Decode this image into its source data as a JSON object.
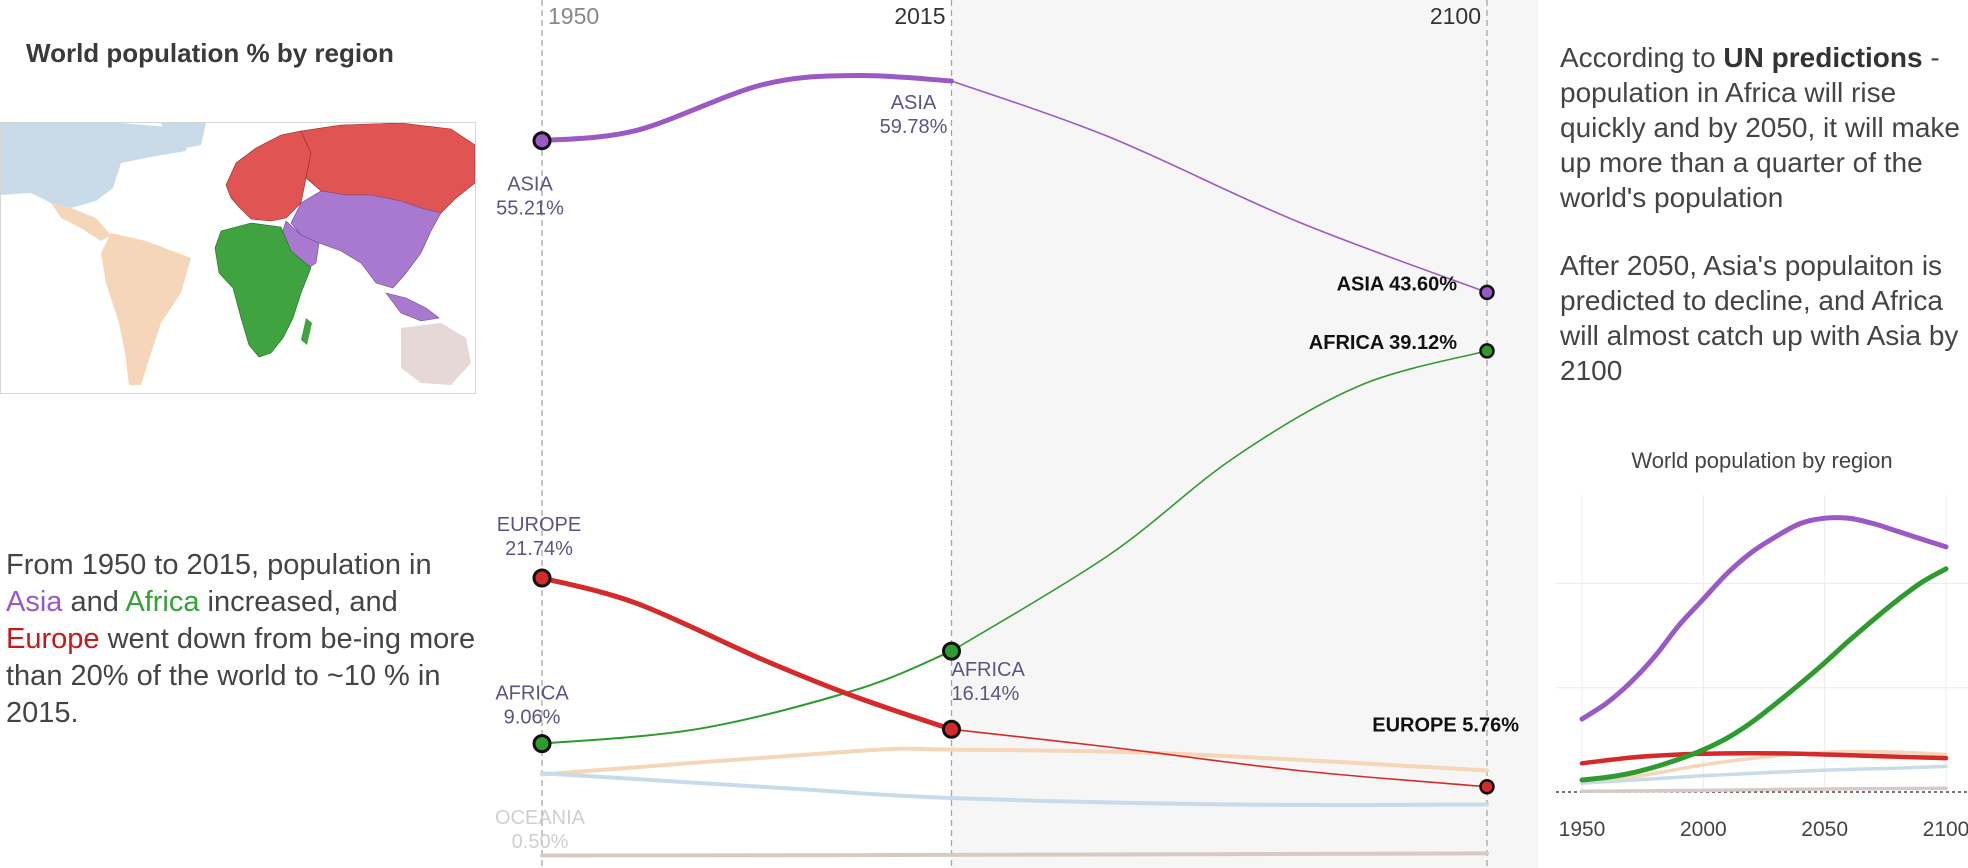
{
  "left": {
    "title": "World population % by region",
    "note": {
      "p1": "From 1950 to 2015, population in ",
      "asia": "Asia",
      "p2": " and ",
      "africa": "Africa",
      "p3": " increased, and ",
      "europe": "Europe",
      "p4": " went down from be-ing more than 20% of the world to ~10 % in 2015."
    }
  },
  "right": {
    "note1": {
      "lead": "According to ",
      "bold": "UN predictions",
      "rest": " - population in Africa will rise quickly and by 2050, it will make up more than a quarter of the world's population"
    },
    "note2": "After 2050, Asia's populaiton is predicted to decline, and Africa will almost catch up with Asia by 2100"
  },
  "colors": {
    "asia": "#9b59c6",
    "africa": "#2e9b2e",
    "europe": "#d42a2a",
    "americas": "#f5d6b8",
    "north_america": "#c9dbe9",
    "oceania": "#d9c9c6",
    "projection_bg": "#f6f6f6"
  },
  "chart_data": [
    {
      "type": "line",
      "x_markers": [
        "1950",
        "2015",
        "2100"
      ],
      "series": [
        {
          "name": "ASIA",
          "x": [
            1950,
            1965,
            1985,
            2000,
            2015,
            2040,
            2070,
            2100
          ],
          "values": [
            55.21,
            56.0,
            59.5,
            60.2,
            59.78,
            55.5,
            49.0,
            43.6
          ]
        },
        {
          "name": "AFRICA",
          "x": [
            1950,
            1975,
            2000,
            2015,
            2040,
            2060,
            2080,
            2100
          ],
          "values": [
            9.06,
            10.2,
            13.2,
            16.14,
            23.5,
            31.0,
            36.5,
            39.12
          ]
        },
        {
          "name": "EUROPE",
          "x": [
            1950,
            1965,
            1985,
            2000,
            2015,
            2040,
            2070,
            2100
          ],
          "values": [
            21.74,
            19.8,
            15.5,
            12.6,
            10.16,
            8.8,
            7.0,
            5.76
          ]
        },
        {
          "name": "",
          "x": [
            1950,
            2000,
            2015,
            2050,
            2100
          ],
          "values": [
            6.7,
            8.5,
            8.6,
            8.3,
            7.0
          ]
        },
        {
          "name": "",
          "x": [
            1950,
            1990,
            2015,
            2060,
            2100
          ],
          "values": [
            6.8,
            5.6,
            4.9,
            4.4,
            4.4
          ]
        },
        {
          "name": "OCEANIA",
          "x": [
            1950,
            2015,
            2100
          ],
          "values": [
            0.5,
            0.54,
            0.66
          ]
        }
      ],
      "labels": {
        "asia_1950": [
          "ASIA",
          "55.21%"
        ],
        "asia_2015": [
          "ASIA",
          "59.78%"
        ],
        "asia_2100": "ASIA 43.60%",
        "africa_1950": [
          "AFRICA",
          "9.06%"
        ],
        "africa_2015": [
          "AFRICA",
          "16.14%"
        ],
        "africa_2100": "AFRICA 39.12%",
        "europe_1950": [
          "EUROPE",
          "21.74%"
        ],
        "europe_2100": "EUROPE  5.76%",
        "oceania_1950": [
          "OCEANIA",
          "0.50%"
        ]
      },
      "highlight_points": [
        {
          "series": "ASIA",
          "x": 1950
        },
        {
          "series": "ASIA",
          "x": 2100
        },
        {
          "series": "AFRICA",
          "x": 1950
        },
        {
          "series": "AFRICA",
          "x": 2015
        },
        {
          "series": "AFRICA",
          "x": 2100
        },
        {
          "series": "EUROPE",
          "x": 1950
        },
        {
          "series": "EUROPE",
          "x": 2015
        },
        {
          "series": "EUROPE",
          "x": 2100
        }
      ],
      "ylim": [
        0,
        62
      ],
      "xlim": [
        1950,
        2100
      ]
    },
    {
      "type": "line",
      "title": "World population by region",
      "x_ticks": [
        "1950",
        "2000",
        "2050",
        "2100"
      ],
      "xlim": [
        1950,
        2100
      ],
      "series": [
        {
          "name": "Asia",
          "x": [
            1950,
            1960,
            1970,
            1980,
            1990,
            2000,
            2010,
            2020,
            2030,
            2040,
            2050,
            2060,
            2070,
            2080,
            2090,
            2100
          ],
          "values": [
            1.4,
            1.7,
            2.1,
            2.6,
            3.2,
            3.7,
            4.2,
            4.6,
            4.9,
            5.15,
            5.25,
            5.25,
            5.15,
            5.0,
            4.85,
            4.7
          ]
        },
        {
          "name": "Africa",
          "x": [
            1950,
            1960,
            1970,
            1980,
            1990,
            2000,
            2010,
            2020,
            2030,
            2040,
            2050,
            2060,
            2070,
            2080,
            2090,
            2100
          ],
          "values": [
            0.23,
            0.28,
            0.36,
            0.48,
            0.63,
            0.81,
            1.04,
            1.34,
            1.7,
            2.08,
            2.48,
            2.9,
            3.3,
            3.68,
            4.02,
            4.28
          ]
        },
        {
          "name": "Europe",
          "x": [
            1950,
            1970,
            1990,
            2010,
            2030,
            2050,
            2070,
            2100
          ],
          "values": [
            0.55,
            0.66,
            0.72,
            0.74,
            0.74,
            0.72,
            0.69,
            0.65
          ]
        },
        {
          "name": "",
          "x": [
            1950,
            1975,
            2000,
            2025,
            2050,
            2075,
            2100
          ],
          "values": [
            0.17,
            0.32,
            0.52,
            0.67,
            0.76,
            0.77,
            0.72
          ]
        },
        {
          "name": "",
          "x": [
            1950,
            1975,
            2000,
            2025,
            2050,
            2075,
            2100
          ],
          "values": [
            0.17,
            0.24,
            0.31,
            0.37,
            0.42,
            0.45,
            0.49
          ]
        },
        {
          "name": "",
          "x": [
            1950,
            2000,
            2050,
            2100
          ],
          "values": [
            0.013,
            0.031,
            0.057,
            0.072
          ]
        }
      ],
      "ylim": [
        0,
        5.6
      ]
    }
  ]
}
